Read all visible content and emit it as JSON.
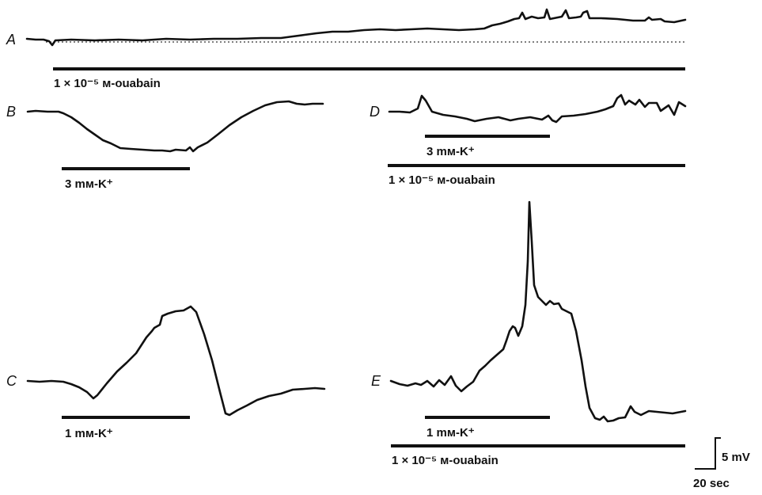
{
  "panels": {
    "A": {
      "letter": "A",
      "bar_label": "1 × 10⁻⁵ м-ouabain"
    },
    "B": {
      "letter": "B",
      "bar_label": "3 mм-K⁺"
    },
    "C": {
      "letter": "C",
      "bar_label": "1 mм-K⁺"
    },
    "D": {
      "letter": "D",
      "bar_label_k": "3 mм-K⁺",
      "bar_label_ouabain": "1 × 10⁻⁵ м-ouabain"
    },
    "E": {
      "letter": "E",
      "bar_label_k": "1 mм-K⁺",
      "bar_label_ouabain": "1 × 10⁻⁵ м-ouabain"
    }
  },
  "scale_bar": {
    "voltage": "5 mV",
    "time": "20 sec"
  },
  "colors": {
    "ink": "#111111",
    "background": "#ffffff"
  }
}
